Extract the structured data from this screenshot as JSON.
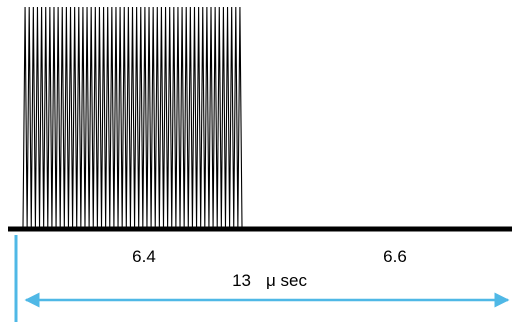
{
  "diagram": {
    "segments": [
      {
        "label": "6.4"
      },
      {
        "label": "6.6"
      }
    ],
    "total_value": "13",
    "total_unit": "μ sec",
    "pulse_cycles": 53,
    "colors": {
      "pulse": "#000000",
      "baseline": "#000000",
      "dimension": "#4fb8e6"
    }
  }
}
